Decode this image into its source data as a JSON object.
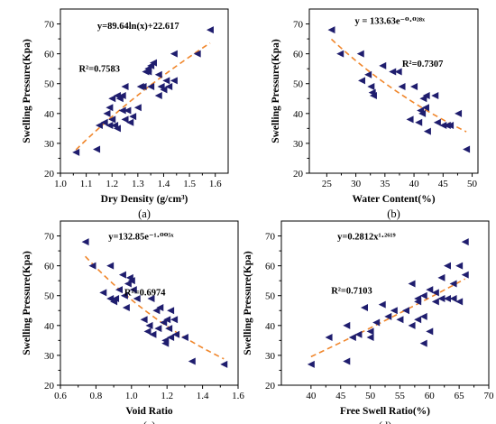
{
  "colors": {
    "marker": "#1f1d6e",
    "trend": "#f0862b",
    "axis": "#000000"
  },
  "chart_data": [
    {
      "type": "scatter",
      "panel_label": "(a)",
      "xlabel": "Dry Density (g/cm³)",
      "ylabel": "Swelling Pressure(Kpa)",
      "xlim": [
        1.0,
        1.65
      ],
      "ylim": [
        20,
        75
      ],
      "xticks": [
        1.0,
        1.1,
        1.2,
        1.3,
        1.4,
        1.5,
        1.6
      ],
      "xtick_labels": [
        "1.0",
        "1.1",
        "1.2",
        "1.3",
        "1.4",
        "1.5",
        "1.6"
      ],
      "yticks": [
        20,
        30,
        40,
        50,
        60,
        70
      ],
      "ytick_labels": [
        "20",
        "30",
        "40",
        "50",
        "60",
        "70"
      ],
      "equation": "y=89.64ln(x)+22.617",
      "r2": "R²=0.7583",
      "trend": {
        "model": "log",
        "a": 89.64,
        "b": 22.617,
        "x_range": [
          1.06,
          1.58
        ]
      },
      "x": [
        1.06,
        1.14,
        1.15,
        1.17,
        1.18,
        1.19,
        1.19,
        1.2,
        1.2,
        1.21,
        1.22,
        1.22,
        1.23,
        1.24,
        1.24,
        1.25,
        1.25,
        1.26,
        1.27,
        1.28,
        1.3,
        1.31,
        1.32,
        1.33,
        1.34,
        1.34,
        1.35,
        1.35,
        1.36,
        1.38,
        1.38,
        1.39,
        1.4,
        1.41,
        1.42,
        1.44,
        1.44,
        1.53,
        1.58
      ],
      "y": [
        27,
        28,
        36,
        37,
        40,
        42,
        36,
        45,
        38,
        36,
        46,
        35,
        45,
        41,
        46,
        38,
        49,
        41,
        37,
        39,
        42,
        49,
        49,
        54,
        55,
        54,
        49,
        56,
        57,
        46,
        53,
        49,
        48,
        51,
        49,
        60,
        51,
        60,
        68
      ]
    },
    {
      "type": "scatter",
      "panel_label": "(b)",
      "xlabel": "Water Content(%)",
      "ylabel": "Swelling Pressure(Kpa)",
      "xlim": [
        22,
        51
      ],
      "ylim": [
        20,
        75
      ],
      "xticks": [
        25,
        30,
        35,
        40,
        45,
        50
      ],
      "xtick_labels": [
        "25",
        "30",
        "35",
        "40",
        "45",
        "50"
      ],
      "yticks": [
        20,
        30,
        40,
        50,
        60,
        70
      ],
      "ytick_labels": [
        "20",
        "30",
        "40",
        "50",
        "60",
        "70"
      ],
      "equation": "y = 133.63e⁻⁰·⁰²⁸ˣ",
      "r2": "R²=0.7307",
      "trend": {
        "model": "exp",
        "a": 133.63,
        "b": -0.028,
        "x_range": [
          25.8,
          49
        ]
      },
      "x": [
        25.8,
        27.3,
        30.8,
        31.0,
        32.1,
        32.6,
        32.8,
        33.0,
        34.6,
        36.3,
        37.3,
        37.9,
        39.3,
        40.0,
        40.8,
        41.1,
        41.4,
        41.6,
        42.0,
        42.1,
        42.3,
        43.6,
        44.0,
        45.0,
        45.7,
        46.2,
        47.6,
        49.0
      ],
      "y": [
        68,
        60,
        60,
        51,
        53,
        49,
        47,
        46,
        56,
        54,
        54,
        49,
        38,
        49,
        37,
        41,
        40,
        45,
        42,
        46,
        34,
        46,
        37,
        36,
        36,
        36,
        40,
        28
      ]
    },
    {
      "type": "scatter",
      "panel_label": "(c)",
      "xlabel": "Void Ratio",
      "ylabel": "Swelling Pressure(Kpa)",
      "xlim": [
        0.6,
        1.6
      ],
      "ylim": [
        20,
        75
      ],
      "xticks": [
        0.6,
        0.8,
        1.0,
        1.2,
        1.4,
        1.6
      ],
      "xtick_labels": [
        "0.6",
        "0.8",
        "1.0",
        "1.2",
        "1.4",
        "1.6"
      ],
      "yticks": [
        20,
        30,
        40,
        50,
        60,
        70
      ],
      "ytick_labels": [
        "20",
        "30",
        "40",
        "50",
        "60",
        "70"
      ],
      "equation": "y=132.85e⁻¹·⁰⁰⁵ˣ",
      "r2": "R²=0.6974",
      "trend": {
        "model": "exp",
        "a": 132.85,
        "b": -1.005,
        "x_range": [
          0.74,
          1.52
        ]
      },
      "x": [
        0.74,
        0.78,
        0.84,
        0.88,
        0.88,
        0.9,
        0.91,
        0.93,
        0.95,
        0.96,
        0.97,
        0.98,
        0.99,
        1.0,
        1.01,
        1.03,
        1.07,
        1.09,
        1.1,
        1.11,
        1.12,
        1.14,
        1.15,
        1.16,
        1.18,
        1.19,
        1.19,
        1.2,
        1.21,
        1.22,
        1.22,
        1.24,
        1.25,
        1.3,
        1.34,
        1.52
      ],
      "y": [
        68,
        60,
        51,
        60,
        49,
        48,
        49,
        52,
        57,
        50,
        46,
        54,
        56,
        55,
        52,
        49,
        42,
        38,
        40,
        49,
        37,
        45,
        39,
        46,
        41,
        35,
        34,
        42,
        39,
        45,
        36,
        42,
        37,
        36,
        28,
        27
      ]
    },
    {
      "type": "scatter",
      "panel_label": "(d)",
      "xlabel": "Free Swell Ratio(%)",
      "ylabel": "Swelling Pressure(Kpa)",
      "xlim": [
        35,
        70
      ],
      "ylim": [
        20,
        75
      ],
      "xticks": [
        40,
        45,
        50,
        55,
        60,
        65,
        70
      ],
      "xtick_labels": [
        "40",
        "45",
        "50",
        "55",
        "60",
        "65",
        "70"
      ],
      "yticks": [
        20,
        30,
        40,
        50,
        60,
        70
      ],
      "ytick_labels": [
        "20",
        "30",
        "40",
        "50",
        "60",
        "70"
      ],
      "equation": "y=0.2812x¹·²⁶¹⁹",
      "r2": "R²=0.7103",
      "trend": {
        "model": "power",
        "a": 0.2812,
        "b": 1.2619,
        "x_range": [
          40,
          66
        ]
      },
      "x": [
        40,
        43,
        46,
        46,
        47,
        48,
        49,
        50,
        50,
        51,
        52,
        53,
        54,
        55,
        56,
        57,
        57,
        58,
        58,
        58,
        59,
        59,
        59,
        60,
        60,
        61,
        61,
        62,
        62,
        63,
        63,
        64,
        64,
        65,
        65,
        66,
        66
      ],
      "y": [
        27,
        36,
        40,
        28,
        36,
        37,
        46,
        36,
        38,
        41,
        47,
        43,
        45,
        42,
        45,
        40,
        54,
        42,
        48,
        49,
        43,
        34,
        50,
        38,
        52,
        48,
        51,
        49,
        56,
        49,
        60,
        49,
        54,
        60,
        48,
        57,
        68
      ]
    }
  ]
}
